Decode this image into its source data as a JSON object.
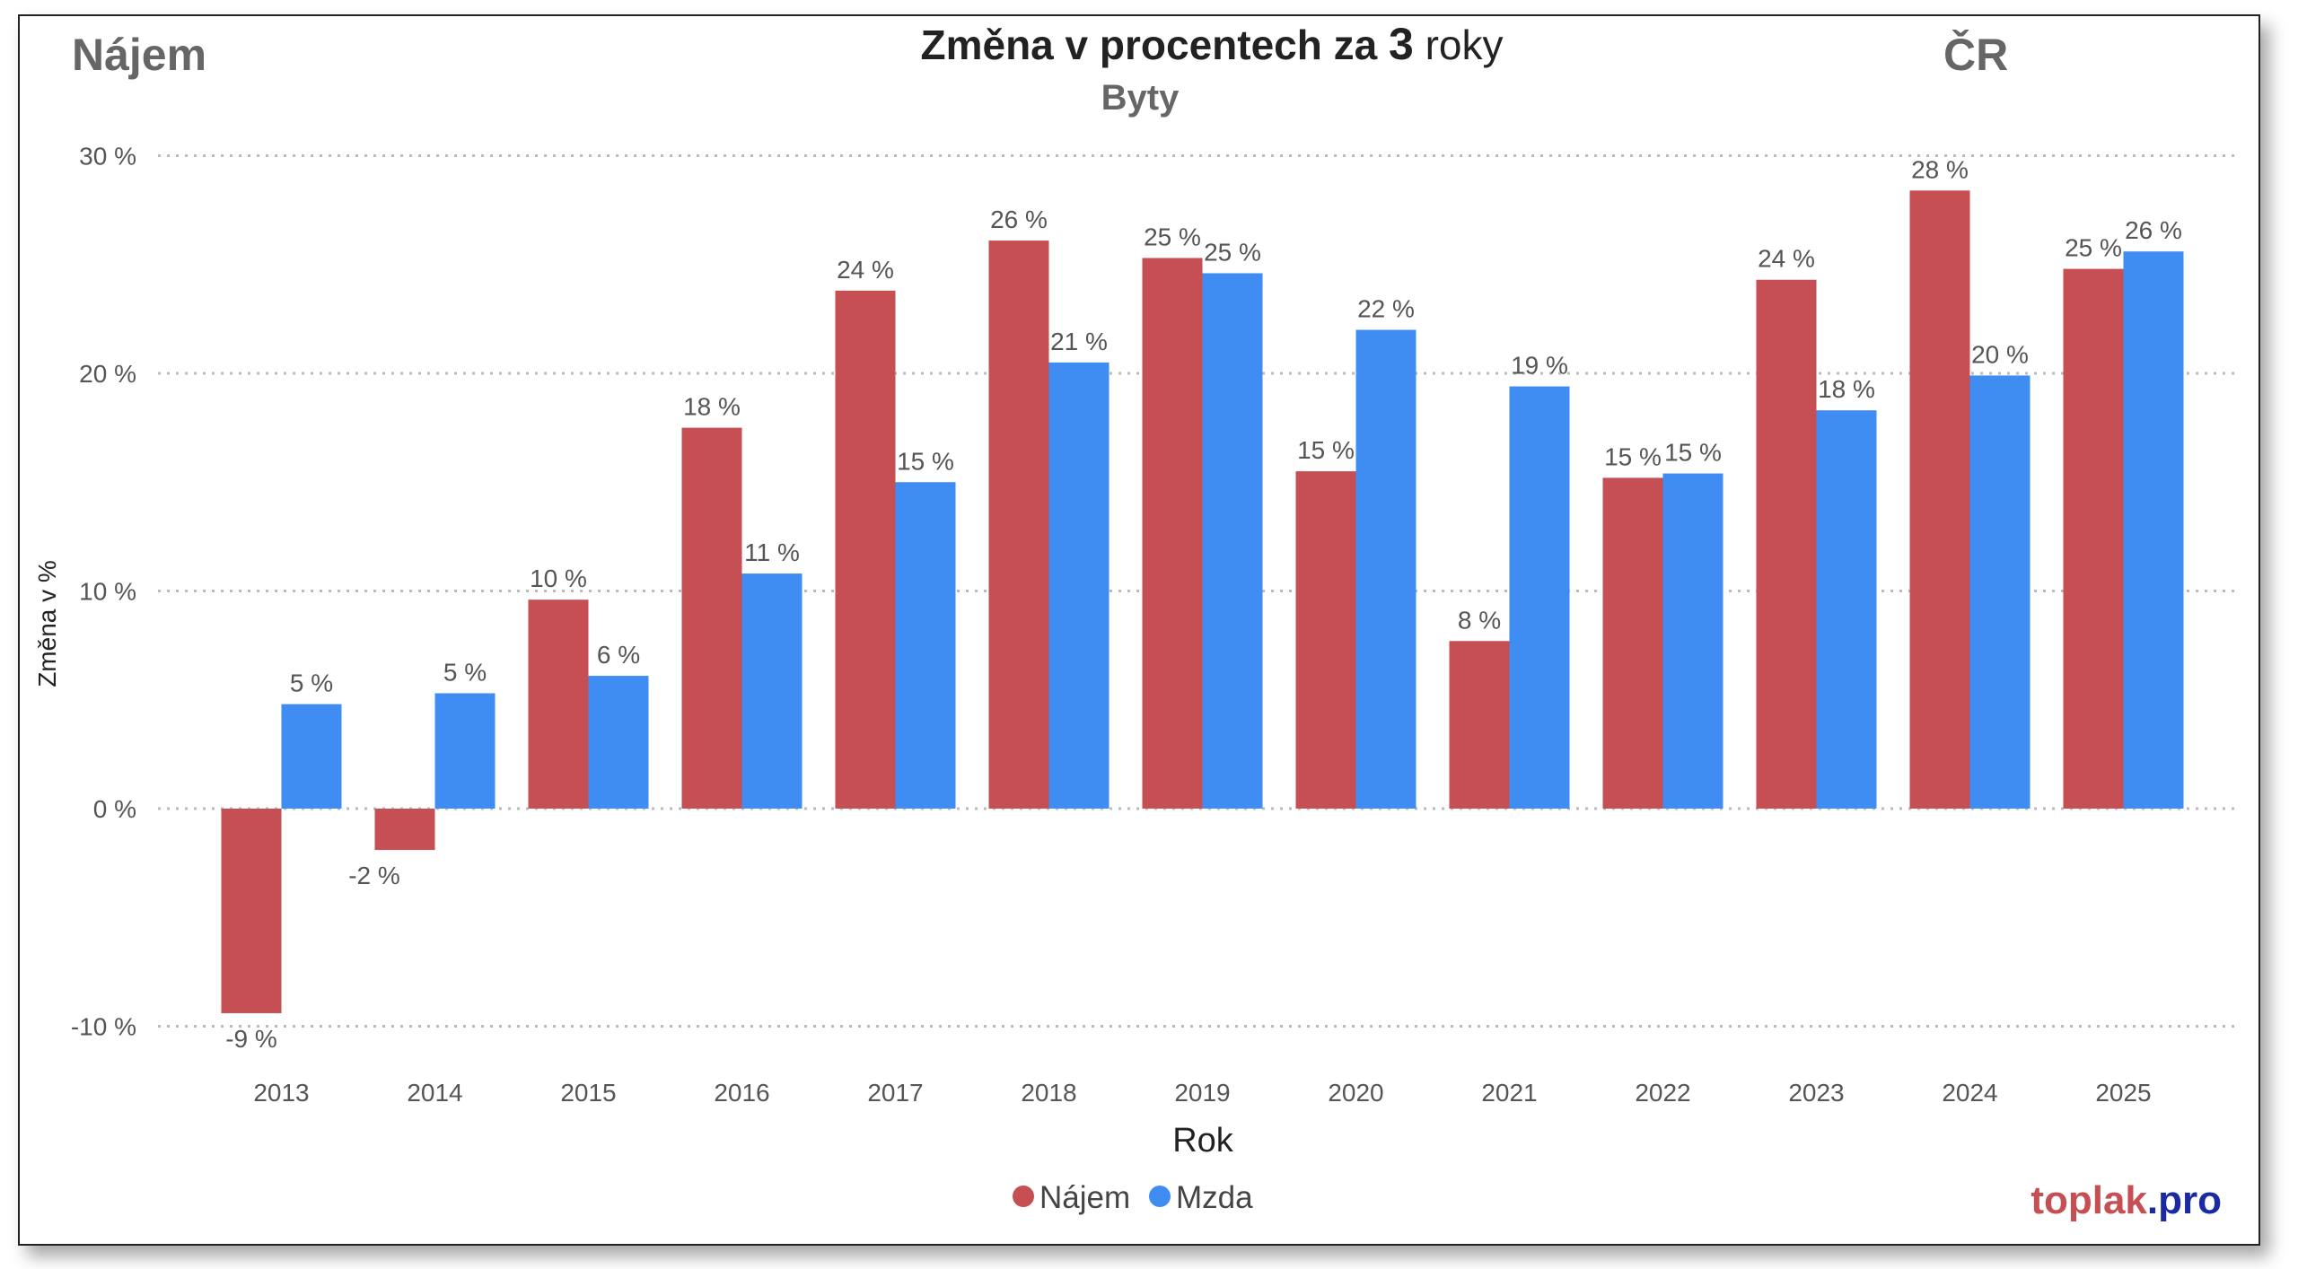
{
  "header": {
    "left_label": "Nájem",
    "right_label": "ČR",
    "title_main": "Změna v procentech za",
    "title_number": "3",
    "title_tail": "roky",
    "subtitle": "Byty"
  },
  "branding": {
    "part1": "toplak",
    "part2": ".pro"
  },
  "chart_data": {
    "type": "bar",
    "title": "Změna v procentech za 3 roky",
    "subtitle": "Byty",
    "xlabel": "Rok",
    "ylabel": "Změna v %",
    "ylim": [
      -10,
      30
    ],
    "yticks": [
      -10,
      0,
      10,
      20,
      30
    ],
    "ytick_labels": [
      "-10 %",
      "0 %",
      "10 %",
      "20 %",
      "30 %"
    ],
    "grid": true,
    "legend_position": "bottom-center",
    "categories": [
      "2013",
      "2014",
      "2015",
      "2016",
      "2017",
      "2018",
      "2019",
      "2020",
      "2021",
      "2022",
      "2023",
      "2024",
      "2025"
    ],
    "series": [
      {
        "name": "Nájem",
        "color": "#c64f53",
        "values": [
          -9.4,
          -1.9,
          9.6,
          17.5,
          23.8,
          26.1,
          25.3,
          15.5,
          7.7,
          15.2,
          24.3,
          28.4,
          24.8
        ],
        "labels": [
          "-9 %",
          "-2 %",
          "10 %",
          "18 %",
          "24 %",
          "26 %",
          "25 %",
          "15 %",
          "8 %",
          "15 %",
          "24 %",
          "28 %",
          "25 %"
        ]
      },
      {
        "name": "Mzda",
        "color": "#3f8cf3",
        "values": [
          4.8,
          5.3,
          6.1,
          10.8,
          15.0,
          20.5,
          24.6,
          22.0,
          19.4,
          15.4,
          18.3,
          19.9,
          25.6
        ],
        "labels": [
          "5 %",
          "5 %",
          "6 %",
          "11 %",
          "15 %",
          "21 %",
          "25 %",
          "22 %",
          "19 %",
          "15 %",
          "18 %",
          "20 %",
          "26 %"
        ]
      }
    ]
  }
}
